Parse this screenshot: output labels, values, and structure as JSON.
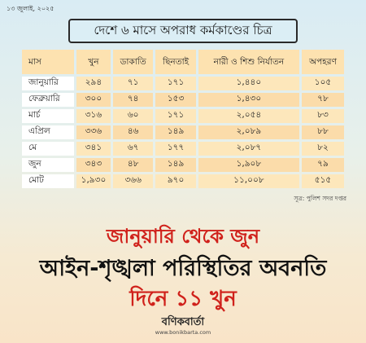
{
  "header": {
    "date": "১৩ জুলাই, ২০২৫",
    "title": "দেশে ৬ মাসে অপরাধ কর্মকাণ্ডের চিত্র"
  },
  "table": {
    "columns": [
      "মাস",
      "খুন",
      "ডাকাতি",
      "ছিনতাই",
      "নারী ও শিশু নির্যাতন",
      "অপহরণ"
    ],
    "rows": [
      [
        "জানুয়ারি",
        "২৯৪",
        "৭১",
        "১৭১",
        "১,৪৪০",
        "১০৫"
      ],
      [
        "ফেব্রুয়ারি",
        "৩০০",
        "৭৪",
        "১৫৩",
        "১,৪৩০",
        "৭৮"
      ],
      [
        "মার্চ",
        "৩১৬",
        "৬০",
        "১৭১",
        "২,০৫৪",
        "৮৩"
      ],
      [
        "এপ্রিল",
        "৩৩৬",
        "৪৬",
        "১৪৯",
        "২,০৮৯",
        "৮৮"
      ],
      [
        "মে",
        "৩৪১",
        "৬৭",
        "১৭৭",
        "২,০৮৭",
        "৮২"
      ],
      [
        "জুন",
        "৩৪৩",
        "৪৮",
        "১৪৯",
        "১,৯০৮",
        "৭৯"
      ]
    ],
    "total": [
      "মোট",
      "১,৯৩০",
      "৩৬৬",
      "৯৭০",
      "১১,০০৮",
      "৫১৫"
    ]
  },
  "source": "সূত্র: পুলিশ সদর দপ্তর",
  "headline": {
    "line1": "জানুয়ারি থেকে জুন",
    "line2": "আইন-শৃঙ্খলা পরিস্থিতির অবনতি",
    "line3": "দিনে ১১ খুন"
  },
  "brand": {
    "logo": "বণিকবার্তা",
    "url": "www.bonikbarta.com"
  },
  "colors": {
    "accent_red": "#d0211b",
    "cell_orange": "#fde2b0",
    "title_bg": "#dbeef5"
  }
}
